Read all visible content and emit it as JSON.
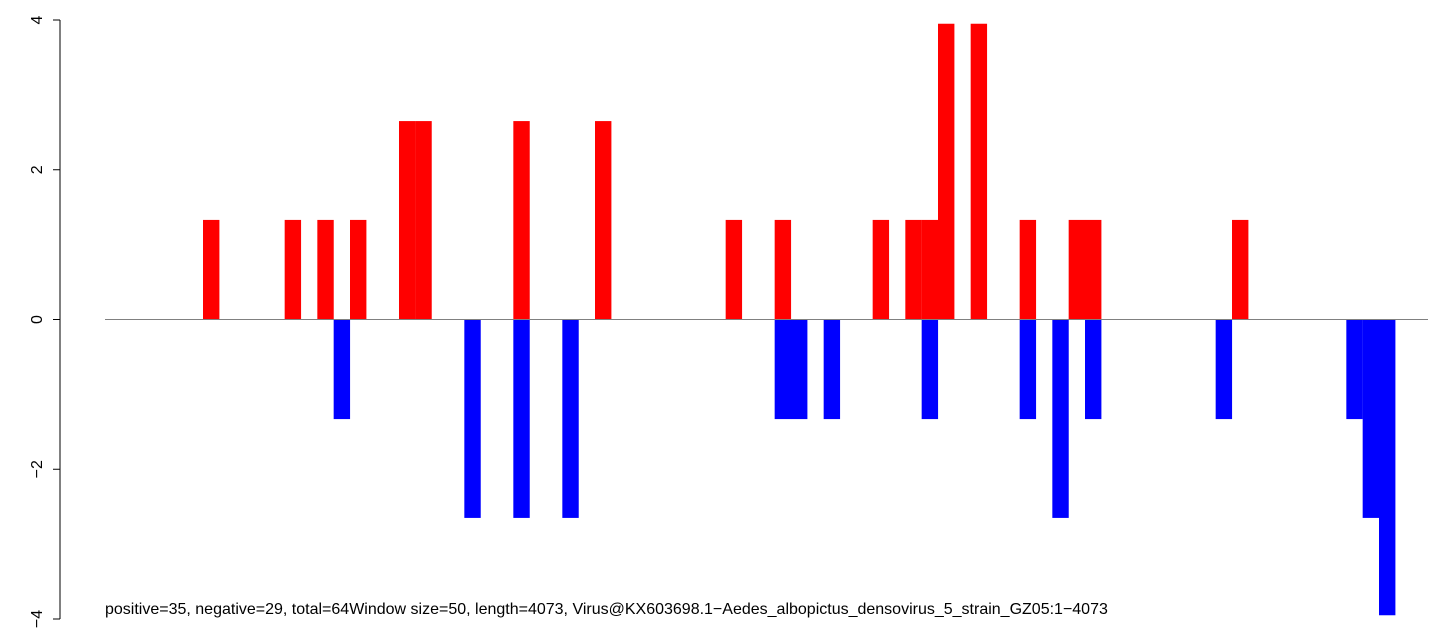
{
  "chart_data": {
    "type": "bar",
    "title": "",
    "xlabel": "",
    "ylabel": "",
    "ylim": [
      -4,
      4
    ],
    "y_ticks": [
      "-4",
      "-2",
      "0",
      "2",
      "4"
    ],
    "y_tick_values": [
      -4,
      -2,
      0,
      2,
      4
    ],
    "xlim": [
      0,
      81
    ],
    "x_axis_shown": false,
    "grid": false,
    "legend": "none",
    "baseline": 0,
    "series": [
      {
        "color": "#ff0000",
        "bars": [
          {
            "x": 6,
            "value": 1.33
          },
          {
            "x": 11,
            "value": 1.33
          },
          {
            "x": 13,
            "value": 1.33
          },
          {
            "x": 15,
            "value": 1.33
          },
          {
            "x": 18,
            "value": 2.65
          },
          {
            "x": 19,
            "value": 2.65
          },
          {
            "x": 25,
            "value": 2.65
          },
          {
            "x": 30,
            "value": 2.65
          },
          {
            "x": 38,
            "value": 1.33
          },
          {
            "x": 41,
            "value": 1.33
          },
          {
            "x": 47,
            "value": 1.33
          },
          {
            "x": 49,
            "value": 1.33
          },
          {
            "x": 50,
            "value": 1.33
          },
          {
            "x": 51,
            "value": 3.95
          },
          {
            "x": 53,
            "value": 3.95
          },
          {
            "x": 56,
            "value": 1.33
          },
          {
            "x": 59,
            "value": 1.33
          },
          {
            "x": 60,
            "value": 1.33
          },
          {
            "x": 69,
            "value": 1.33
          }
        ]
      },
      {
        "color": "#0000ff",
        "bars": [
          {
            "x": 14,
            "value": -1.33
          },
          {
            "x": 22,
            "value": -2.65
          },
          {
            "x": 25,
            "value": -2.65
          },
          {
            "x": 28,
            "value": -2.65
          },
          {
            "x": 41,
            "value": -1.33
          },
          {
            "x": 42,
            "value": -1.33
          },
          {
            "x": 44,
            "value": -1.33
          },
          {
            "x": 50,
            "value": -1.33
          },
          {
            "x": 56,
            "value": -1.33
          },
          {
            "x": 58,
            "value": -2.65
          },
          {
            "x": 60,
            "value": -1.33
          },
          {
            "x": 68,
            "value": -1.33
          },
          {
            "x": 76,
            "value": -1.33
          },
          {
            "x": 77,
            "value": -2.65
          },
          {
            "x": 78,
            "value": -3.95
          }
        ]
      }
    ],
    "annotations": [
      "positive=35, negative=29, total=64",
      "Window size=50, length=4073, Virus@KX603698.1−Aedes_albopictus_densovirus_5_strain_GZ05:1−4073"
    ]
  }
}
